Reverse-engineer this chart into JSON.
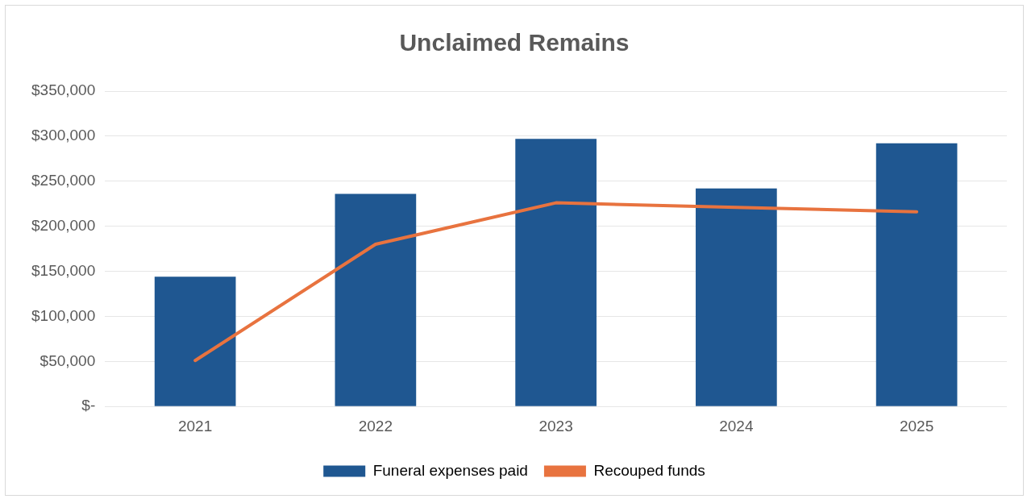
{
  "chart_data": {
    "type": "bar",
    "title": "Unclaimed Remains",
    "categories": [
      "2021",
      "2022",
      "2023",
      "2024",
      "2025"
    ],
    "series": [
      {
        "name": "Funeral expenses paid",
        "color": "#1f5791",
        "values": [
          144000,
          236000,
          297000,
          242000,
          292000
        ]
      },
      {
        "name": "Recouped funds",
        "type": "line",
        "color": "#e8733f",
        "values": [
          51000,
          180000,
          226000,
          221000,
          216000
        ]
      }
    ],
    "ylim": [
      0,
      350000
    ],
    "yticks": [
      {
        "value": 0,
        "label": "$-"
      },
      {
        "value": 50000,
        "label": "$50,000"
      },
      {
        "value": 100000,
        "label": "$100,000"
      },
      {
        "value": 150000,
        "label": "$150,000"
      },
      {
        "value": 200000,
        "label": "$200,000"
      },
      {
        "value": 250000,
        "label": "$250,000"
      },
      {
        "value": 300000,
        "label": "$300,000"
      },
      {
        "value": 350000,
        "label": "$350,000"
      }
    ],
    "grid": "y",
    "legend": "bottom",
    "marker": "none",
    "line_style": "solid"
  }
}
